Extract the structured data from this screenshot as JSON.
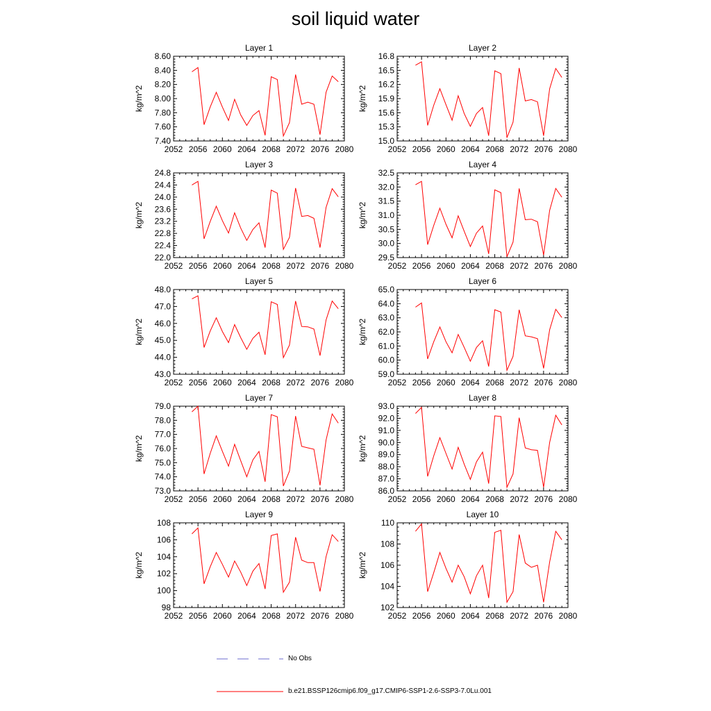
{
  "title": "soil liquid water",
  "colors": {
    "model_line": "#ff0000",
    "obs_line": "#6b6bcf",
    "axis": "#000000"
  },
  "legend": {
    "obs_label": "No Obs",
    "model_label": "b.e21.BSSP126cmip6.f09_g17.CMIP6-SSP1-2.6-SSP3-7.0Lu.001"
  },
  "chart_data": [
    {
      "type": "line",
      "title": "Layer 1",
      "ylabel": "kg/m^2",
      "xlim": [
        2052,
        2080
      ],
      "xticks": [
        2052,
        2056,
        2060,
        2064,
        2068,
        2072,
        2076,
        2080
      ],
      "ylim": [
        7.4,
        8.6
      ],
      "yticks": [
        "7.40",
        "7.60",
        "7.80",
        "8.00",
        "8.20",
        "8.40",
        "8.60"
      ],
      "x": [
        2055,
        2056,
        2057,
        2058,
        2059,
        2060,
        2061,
        2062,
        2063,
        2064,
        2065,
        2066,
        2067,
        2068,
        2069,
        2070,
        2071,
        2072,
        2073,
        2074,
        2075,
        2076,
        2077,
        2078,
        2079
      ],
      "series": [
        {
          "name": "b.e21.BSSP126cmip6.f09_g17.CMIP6-SSP1-2.6-SSP3-7.0Lu.001",
          "values": [
            8.38,
            8.44,
            7.63,
            7.88,
            8.09,
            7.88,
            7.69,
            7.99,
            7.77,
            7.62,
            7.76,
            7.83,
            7.48,
            8.31,
            8.27,
            7.47,
            7.66,
            8.34,
            7.92,
            7.95,
            7.92,
            7.49,
            8.09,
            8.32,
            8.24
          ]
        }
      ]
    },
    {
      "type": "line",
      "title": "Layer 2",
      "ylabel": "kg/m^2",
      "xlim": [
        2052,
        2080
      ],
      "xticks": [
        2052,
        2056,
        2060,
        2064,
        2068,
        2072,
        2076,
        2080
      ],
      "ylim": [
        15.0,
        16.8
      ],
      "yticks": [
        "15.0",
        "15.3",
        "15.6",
        "15.9",
        "16.2",
        "16.5",
        "16.8"
      ],
      "x": [
        2055,
        2056,
        2057,
        2058,
        2059,
        2060,
        2061,
        2062,
        2063,
        2064,
        2065,
        2066,
        2067,
        2068,
        2069,
        2070,
        2071,
        2072,
        2073,
        2074,
        2075,
        2076,
        2077,
        2078,
        2079
      ],
      "series": [
        {
          "name": "b.e21.BSSP126cmip6.f09_g17.CMIP6-SSP1-2.6-SSP3-7.0Lu.001",
          "values": [
            16.61,
            16.68,
            15.33,
            15.76,
            16.11,
            15.77,
            15.44,
            15.96,
            15.58,
            15.31,
            15.58,
            15.71,
            15.11,
            16.49,
            16.43,
            15.07,
            15.4,
            16.55,
            15.85,
            15.88,
            15.83,
            15.11,
            16.11,
            16.54,
            16.35
          ]
        }
      ]
    },
    {
      "type": "line",
      "title": "Layer 3",
      "ylabel": "kg/m^2",
      "xlim": [
        2052,
        2080
      ],
      "xticks": [
        2052,
        2056,
        2060,
        2064,
        2068,
        2072,
        2076,
        2080
      ],
      "ylim": [
        22.0,
        24.8
      ],
      "yticks": [
        "22.0",
        "22.4",
        "22.8",
        "23.2",
        "23.6",
        "24.0",
        "24.4",
        "24.8"
      ],
      "x": [
        2055,
        2056,
        2057,
        2058,
        2059,
        2060,
        2061,
        2062,
        2063,
        2064,
        2065,
        2066,
        2067,
        2068,
        2069,
        2070,
        2071,
        2072,
        2073,
        2074,
        2075,
        2076,
        2077,
        2078,
        2079
      ],
      "series": [
        {
          "name": "b.e21.BSSP126cmip6.f09_g17.CMIP6-SSP1-2.6-SSP3-7.0Lu.001",
          "values": [
            24.4,
            24.52,
            22.62,
            23.19,
            23.7,
            23.22,
            22.81,
            23.48,
            22.98,
            22.57,
            22.93,
            23.15,
            22.33,
            24.23,
            24.13,
            22.27,
            22.67,
            24.3,
            23.36,
            23.39,
            23.3,
            22.33,
            23.66,
            24.28,
            24.01
          ]
        }
      ]
    },
    {
      "type": "line",
      "title": "Layer 4",
      "ylabel": "kg/m^2",
      "xlim": [
        2052,
        2080
      ],
      "xticks": [
        2052,
        2056,
        2060,
        2064,
        2068,
        2072,
        2076,
        2080
      ],
      "ylim": [
        29.5,
        32.5
      ],
      "yticks": [
        "29.5",
        "30.0",
        "30.5",
        "31.0",
        "31.5",
        "32.0",
        "32.5"
      ],
      "x": [
        2055,
        2056,
        2057,
        2058,
        2059,
        2060,
        2061,
        2062,
        2063,
        2064,
        2065,
        2066,
        2067,
        2068,
        2069,
        2070,
        2071,
        2072,
        2073,
        2074,
        2075,
        2076,
        2077,
        2078,
        2079
      ],
      "series": [
        {
          "name": "b.e21.BSSP126cmip6.f09_g17.CMIP6-SSP1-2.6-SSP3-7.0Lu.001",
          "values": [
            32.08,
            32.2,
            29.96,
            30.64,
            31.25,
            30.68,
            30.2,
            30.98,
            30.43,
            29.89,
            30.37,
            30.62,
            29.63,
            31.9,
            31.8,
            29.53,
            30.05,
            31.95,
            30.84,
            30.86,
            30.77,
            29.59,
            31.17,
            31.95,
            31.64
          ]
        }
      ]
    },
    {
      "type": "line",
      "title": "Layer 5",
      "ylabel": "kg/m^2",
      "xlim": [
        2052,
        2080
      ],
      "xticks": [
        2052,
        2056,
        2060,
        2064,
        2068,
        2072,
        2076,
        2080
      ],
      "ylim": [
        43.0,
        48.0
      ],
      "yticks": [
        "43.0",
        "44.0",
        "45.0",
        "46.0",
        "47.0",
        "48.0"
      ],
      "x": [
        2055,
        2056,
        2057,
        2058,
        2059,
        2060,
        2061,
        2062,
        2063,
        2064,
        2065,
        2066,
        2067,
        2068,
        2069,
        2070,
        2071,
        2072,
        2073,
        2074,
        2075,
        2076,
        2077,
        2078,
        2079
      ],
      "series": [
        {
          "name": "b.e21.BSSP126cmip6.f09_g17.CMIP6-SSP1-2.6-SSP3-7.0Lu.001",
          "values": [
            47.45,
            47.63,
            44.58,
            45.55,
            46.33,
            45.52,
            44.87,
            45.93,
            45.17,
            44.47,
            45.12,
            45.48,
            44.15,
            47.28,
            47.12,
            43.98,
            44.72,
            47.32,
            45.82,
            45.8,
            45.67,
            44.1,
            46.2,
            47.32,
            46.87
          ]
        }
      ]
    },
    {
      "type": "line",
      "title": "Layer 6",
      "ylabel": "kg/m^2",
      "xlim": [
        2052,
        2080
      ],
      "xticks": [
        2052,
        2056,
        2060,
        2064,
        2068,
        2072,
        2076,
        2080
      ],
      "ylim": [
        59.0,
        65.0
      ],
      "yticks": [
        "59.0",
        "60.0",
        "61.0",
        "62.0",
        "63.0",
        "64.0",
        "65.0"
      ],
      "x": [
        2055,
        2056,
        2057,
        2058,
        2059,
        2060,
        2061,
        2062,
        2063,
        2064,
        2065,
        2066,
        2067,
        2068,
        2069,
        2070,
        2071,
        2072,
        2073,
        2074,
        2075,
        2076,
        2077,
        2078,
        2079
      ],
      "series": [
        {
          "name": "b.e21.BSSP126cmip6.f09_g17.CMIP6-SSP1-2.6-SSP3-7.0Lu.001",
          "values": [
            63.75,
            64.05,
            60.08,
            61.3,
            62.35,
            61.3,
            60.52,
            61.82,
            60.9,
            59.92,
            60.9,
            61.37,
            59.55,
            63.57,
            63.4,
            59.28,
            60.27,
            63.57,
            61.72,
            61.65,
            61.52,
            59.42,
            62.15,
            63.6,
            63.02
          ]
        }
      ]
    },
    {
      "type": "line",
      "title": "Layer 7",
      "ylabel": "kg/m^2",
      "xlim": [
        2052,
        2080
      ],
      "xticks": [
        2052,
        2056,
        2060,
        2064,
        2068,
        2072,
        2076,
        2080
      ],
      "ylim": [
        73.0,
        79.0
      ],
      "yticks": [
        "73.0",
        "74.0",
        "75.0",
        "76.0",
        "77.0",
        "78.0",
        "79.0"
      ],
      "x": [
        2055,
        2056,
        2057,
        2058,
        2059,
        2060,
        2061,
        2062,
        2063,
        2064,
        2065,
        2066,
        2067,
        2068,
        2069,
        2070,
        2071,
        2072,
        2073,
        2074,
        2075,
        2076,
        2077,
        2078,
        2079
      ],
      "series": [
        {
          "name": "b.e21.BSSP126cmip6.f09_g17.CMIP6-SSP1-2.6-SSP3-7.0Lu.001",
          "values": [
            78.6,
            79.0,
            74.2,
            75.65,
            76.9,
            75.8,
            74.75,
            76.3,
            75.15,
            74.0,
            75.2,
            75.8,
            73.65,
            78.4,
            78.25,
            73.35,
            74.4,
            78.3,
            76.15,
            76.05,
            75.95,
            73.4,
            76.6,
            78.45,
            77.8
          ]
        }
      ]
    },
    {
      "type": "line",
      "title": "Layer 8",
      "ylabel": "kg/m^2",
      "xlim": [
        2052,
        2080
      ],
      "xticks": [
        2052,
        2056,
        2060,
        2064,
        2068,
        2072,
        2076,
        2080
      ],
      "ylim": [
        86.0,
        93.0
      ],
      "yticks": [
        "86.0",
        "87.0",
        "88.0",
        "89.0",
        "90.0",
        "91.0",
        "92.0",
        "93.0"
      ],
      "x": [
        2055,
        2056,
        2057,
        2058,
        2059,
        2060,
        2061,
        2062,
        2063,
        2064,
        2065,
        2066,
        2067,
        2068,
        2069,
        2070,
        2071,
        2072,
        2073,
        2074,
        2075,
        2076,
        2077,
        2078,
        2079
      ],
      "series": [
        {
          "name": "b.e21.BSSP126cmip6.f09_g17.CMIP6-SSP1-2.6-SSP3-7.0Lu.001",
          "values": [
            92.4,
            92.9,
            87.2,
            88.9,
            90.4,
            89.1,
            87.8,
            89.6,
            88.2,
            86.95,
            88.4,
            89.2,
            86.6,
            92.2,
            92.15,
            86.3,
            87.4,
            92.05,
            89.55,
            89.4,
            89.35,
            86.3,
            90.0,
            92.25,
            91.45
          ]
        }
      ]
    },
    {
      "type": "line",
      "title": "Layer 9",
      "ylabel": "kg/m^2",
      "xlim": [
        2052,
        2080
      ],
      "xticks": [
        2052,
        2056,
        2060,
        2064,
        2068,
        2072,
        2076,
        2080
      ],
      "ylim": [
        98,
        108
      ],
      "yticks": [
        "98",
        "100",
        "102",
        "104",
        "106",
        "108"
      ],
      "x": [
        2055,
        2056,
        2057,
        2058,
        2059,
        2060,
        2061,
        2062,
        2063,
        2064,
        2065,
        2066,
        2067,
        2068,
        2069,
        2070,
        2071,
        2072,
        2073,
        2074,
        2075,
        2076,
        2077,
        2078,
        2079
      ],
      "series": [
        {
          "name": "b.e21.BSSP126cmip6.f09_g17.CMIP6-SSP1-2.6-SSP3-7.0Lu.001",
          "values": [
            106.7,
            107.4,
            100.8,
            102.8,
            104.5,
            103.1,
            101.6,
            103.5,
            102.2,
            100.6,
            102.3,
            103.2,
            100.2,
            106.5,
            106.7,
            99.8,
            101.0,
            106.3,
            103.6,
            103.3,
            103.3,
            99.9,
            104.0,
            106.6,
            105.8
          ]
        }
      ]
    },
    {
      "type": "line",
      "title": "Layer 10",
      "ylabel": "kg/m^2",
      "xlim": [
        2052,
        2080
      ],
      "xticks": [
        2052,
        2056,
        2060,
        2064,
        2068,
        2072,
        2076,
        2080
      ],
      "ylim": [
        102,
        110
      ],
      "yticks": [
        "102",
        "104",
        "106",
        "108",
        "110"
      ],
      "x": [
        2055,
        2056,
        2057,
        2058,
        2059,
        2060,
        2061,
        2062,
        2063,
        2064,
        2065,
        2066,
        2067,
        2068,
        2069,
        2070,
        2071,
        2072,
        2073,
        2074,
        2075,
        2076,
        2077,
        2078,
        2079
      ],
      "series": [
        {
          "name": "b.e21.BSSP126cmip6.f09_g17.CMIP6-SSP1-2.6-SSP3-7.0Lu.001",
          "values": [
            109.2,
            109.9,
            103.5,
            105.3,
            107.2,
            105.7,
            104.4,
            106.0,
            104.9,
            103.3,
            105.0,
            106.0,
            102.9,
            109.1,
            109.3,
            102.5,
            103.5,
            108.9,
            106.2,
            105.8,
            106.0,
            102.5,
            106.3,
            109.2,
            108.4
          ]
        }
      ]
    }
  ]
}
